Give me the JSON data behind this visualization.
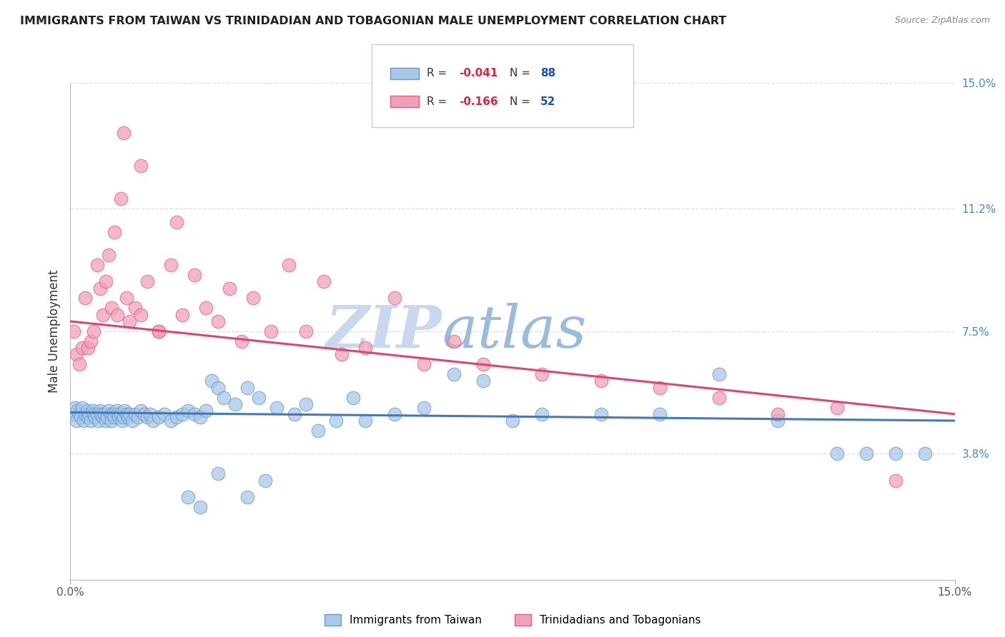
{
  "title": "IMMIGRANTS FROM TAIWAN VS TRINIDADIAN AND TOBAGONIAN MALE UNEMPLOYMENT CORRELATION CHART",
  "source": "Source: ZipAtlas.com",
  "ylabel": "Male Unemployment",
  "right_yticks": [
    15.0,
    11.2,
    7.5,
    3.8
  ],
  "right_ytick_labels": [
    "15.0%",
    "11.2%",
    "7.5%",
    "3.8%"
  ],
  "xmin": 0.0,
  "xmax": 15.0,
  "ymin": 0.0,
  "ymax": 15.0,
  "blue_label": "Immigrants from Taiwan",
  "pink_label": "Trinidadians and Tobagonians",
  "blue_color": "#A8C8E8",
  "pink_color": "#F0A0B8",
  "blue_edge_color": "#6699CC",
  "pink_edge_color": "#E06080",
  "blue_line_color": "#4477BB",
  "pink_line_color": "#DD4477",
  "background_color": "#FFFFFF",
  "watermark_zip": "ZIP",
  "watermark_atlas": "atlas",
  "watermark_color_zip": "#C8D8EE",
  "watermark_color_atlas": "#99BBDD",
  "grid_color": "#DDDDDD",
  "title_color": "#222222",
  "right_axis_color": "#4488CC",
  "legend_R_color": "#DD2244",
  "legend_N_color": "#1155AA",
  "legend_text_color": "#333333",
  "blue_x": [
    0.05,
    0.08,
    0.1,
    0.12,
    0.15,
    0.18,
    0.2,
    0.22,
    0.25,
    0.28,
    0.3,
    0.32,
    0.35,
    0.38,
    0.4,
    0.42,
    0.45,
    0.48,
    0.5,
    0.52,
    0.55,
    0.58,
    0.6,
    0.62,
    0.65,
    0.68,
    0.7,
    0.72,
    0.75,
    0.78,
    0.8,
    0.82,
    0.85,
    0.88,
    0.9,
    0.92,
    0.95,
    0.98,
    1.0,
    1.05,
    1.1,
    1.15,
    1.2,
    1.25,
    1.3,
    1.35,
    1.4,
    1.5,
    1.6,
    1.7,
    1.8,
    1.9,
    2.0,
    2.1,
    2.2,
    2.3,
    2.4,
    2.5,
    2.6,
    2.8,
    3.0,
    3.2,
    3.5,
    3.8,
    4.0,
    4.2,
    4.5,
    4.8,
    5.0,
    5.5,
    6.0,
    6.5,
    7.0,
    7.5,
    8.0,
    9.0,
    10.0,
    11.0,
    12.0,
    13.0,
    13.5,
    14.0,
    14.5,
    2.0,
    2.2,
    2.5,
    3.0,
    3.3
  ],
  "blue_y": [
    5.0,
    5.2,
    4.8,
    5.1,
    5.0,
    4.9,
    5.2,
    4.8,
    5.0,
    5.1,
    4.9,
    5.0,
    4.8,
    5.1,
    5.0,
    4.9,
    5.0,
    4.8,
    5.1,
    5.0,
    4.9,
    5.0,
    4.8,
    4.9,
    5.1,
    5.0,
    4.8,
    5.0,
    4.9,
    5.1,
    5.0,
    4.9,
    5.0,
    4.8,
    4.9,
    5.1,
    5.0,
    4.9,
    5.0,
    4.8,
    5.0,
    4.9,
    5.1,
    5.0,
    4.9,
    5.0,
    4.8,
    4.9,
    5.0,
    4.8,
    4.9,
    5.0,
    5.1,
    5.0,
    4.9,
    5.1,
    6.0,
    5.8,
    5.5,
    5.3,
    5.8,
    5.5,
    5.2,
    5.0,
    5.3,
    4.5,
    4.8,
    5.5,
    4.8,
    5.0,
    5.2,
    6.2,
    6.0,
    4.8,
    5.0,
    5.0,
    5.0,
    6.2,
    4.8,
    3.8,
    3.8,
    3.8,
    3.8,
    2.5,
    2.2,
    3.2,
    2.5,
    3.0
  ],
  "pink_x": [
    0.05,
    0.1,
    0.15,
    0.2,
    0.25,
    0.3,
    0.35,
    0.4,
    0.45,
    0.5,
    0.55,
    0.6,
    0.65,
    0.7,
    0.75,
    0.8,
    0.85,
    0.9,
    0.95,
    1.0,
    1.1,
    1.2,
    1.3,
    1.5,
    1.7,
    1.9,
    2.1,
    2.3,
    2.5,
    2.7,
    2.9,
    3.1,
    3.4,
    3.7,
    4.0,
    4.3,
    4.6,
    5.0,
    5.5,
    6.0,
    6.5,
    7.0,
    8.0,
    9.0,
    10.0,
    11.0,
    12.0,
    13.0,
    14.0,
    1.2,
    1.5,
    1.8
  ],
  "pink_y": [
    7.5,
    6.8,
    6.5,
    7.0,
    8.5,
    7.0,
    7.2,
    7.5,
    9.5,
    8.8,
    8.0,
    9.0,
    9.8,
    8.2,
    10.5,
    8.0,
    11.5,
    13.5,
    8.5,
    7.8,
    8.2,
    8.0,
    9.0,
    7.5,
    9.5,
    8.0,
    9.2,
    8.2,
    7.8,
    8.8,
    7.2,
    8.5,
    7.5,
    9.5,
    7.5,
    9.0,
    6.8,
    7.0,
    8.5,
    6.5,
    7.2,
    6.5,
    6.2,
    6.0,
    5.8,
    5.5,
    5.0,
    5.2,
    3.0,
    12.5,
    7.5,
    10.8
  ],
  "blue_trend_x0": 0.0,
  "blue_trend_y0": 5.05,
  "blue_trend_x1": 15.0,
  "blue_trend_y1": 4.8,
  "pink_trend_x0": 0.0,
  "pink_trend_y0": 7.8,
  "pink_trend_x1": 15.0,
  "pink_trend_y1": 5.0
}
